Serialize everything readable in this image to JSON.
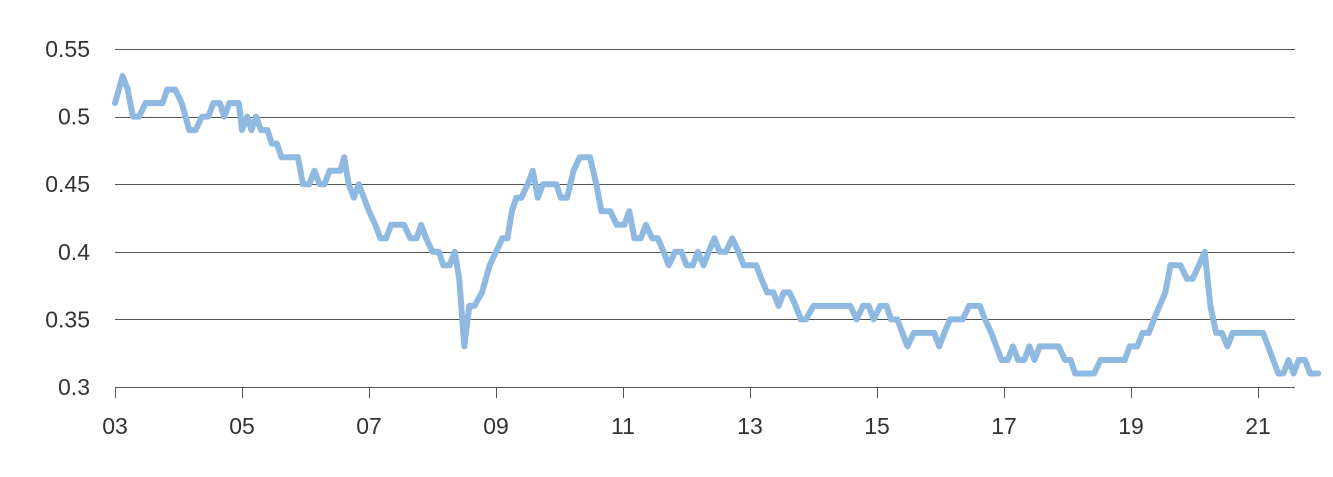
{
  "chart_data": {
    "type": "line",
    "title": "",
    "xlabel": "",
    "ylabel": "",
    "x_tick_labels": [
      "03",
      "05",
      "07",
      "09",
      "11",
      "13",
      "15",
      "17",
      "19",
      "21"
    ],
    "x_tick_values": [
      2003,
      2005,
      2007,
      2009,
      2011,
      2013,
      2015,
      2017,
      2019,
      2021
    ],
    "xlim": [
      2003,
      2021.6
    ],
    "y_tick_labels": [
      "0.3",
      "0.35",
      "0.4",
      "0.45",
      "0.5",
      "0.55"
    ],
    "y_tick_values": [
      0.3,
      0.35,
      0.4,
      0.45,
      0.5,
      0.55
    ],
    "ylim": [
      0.3,
      0.55
    ],
    "grid": true,
    "legend": "none",
    "line_color": "#8fb9e0",
    "axis_color": "#555555",
    "series": [
      {
        "points": [
          [
            2003.0,
            0.51
          ],
          [
            2003.12,
            0.53
          ],
          [
            2003.2,
            0.52
          ],
          [
            2003.28,
            0.5
          ],
          [
            2003.38,
            0.5
          ],
          [
            2003.48,
            0.51
          ],
          [
            2003.62,
            0.51
          ],
          [
            2003.75,
            0.51
          ],
          [
            2003.82,
            0.52
          ],
          [
            2003.95,
            0.52
          ],
          [
            2004.05,
            0.51
          ],
          [
            2004.17,
            0.49
          ],
          [
            2004.27,
            0.49
          ],
          [
            2004.37,
            0.5
          ],
          [
            2004.47,
            0.5
          ],
          [
            2004.55,
            0.51
          ],
          [
            2004.65,
            0.51
          ],
          [
            2004.72,
            0.5
          ],
          [
            2004.8,
            0.51
          ],
          [
            2004.95,
            0.51
          ],
          [
            2005.0,
            0.49
          ],
          [
            2005.08,
            0.5
          ],
          [
            2005.15,
            0.49
          ],
          [
            2005.22,
            0.5
          ],
          [
            2005.3,
            0.49
          ],
          [
            2005.4,
            0.49
          ],
          [
            2005.47,
            0.48
          ],
          [
            2005.55,
            0.48
          ],
          [
            2005.62,
            0.47
          ],
          [
            2005.72,
            0.47
          ],
          [
            2005.88,
            0.47
          ],
          [
            2005.96,
            0.45
          ],
          [
            2006.06,
            0.45
          ],
          [
            2006.14,
            0.46
          ],
          [
            2006.22,
            0.45
          ],
          [
            2006.3,
            0.45
          ],
          [
            2006.38,
            0.46
          ],
          [
            2006.55,
            0.46
          ],
          [
            2006.61,
            0.47
          ],
          [
            2006.68,
            0.45
          ],
          [
            2006.76,
            0.44
          ],
          [
            2006.84,
            0.45
          ],
          [
            2006.92,
            0.44
          ],
          [
            2007.0,
            0.43
          ],
          [
            2007.1,
            0.42
          ],
          [
            2007.18,
            0.41
          ],
          [
            2007.27,
            0.41
          ],
          [
            2007.35,
            0.42
          ],
          [
            2007.55,
            0.42
          ],
          [
            2007.65,
            0.41
          ],
          [
            2007.75,
            0.41
          ],
          [
            2007.82,
            0.42
          ],
          [
            2007.9,
            0.41
          ],
          [
            2008.0,
            0.4
          ],
          [
            2008.1,
            0.4
          ],
          [
            2008.17,
            0.39
          ],
          [
            2008.27,
            0.39
          ],
          [
            2008.35,
            0.4
          ],
          [
            2008.42,
            0.38
          ],
          [
            2008.5,
            0.33
          ],
          [
            2008.58,
            0.36
          ],
          [
            2008.66,
            0.36
          ],
          [
            2008.78,
            0.37
          ],
          [
            2008.9,
            0.39
          ],
          [
            2009.0,
            0.4
          ],
          [
            2009.1,
            0.41
          ],
          [
            2009.18,
            0.41
          ],
          [
            2009.25,
            0.43
          ],
          [
            2009.32,
            0.44
          ],
          [
            2009.4,
            0.44
          ],
          [
            2009.5,
            0.45
          ],
          [
            2009.58,
            0.46
          ],
          [
            2009.66,
            0.44
          ],
          [
            2009.74,
            0.45
          ],
          [
            2009.95,
            0.45
          ],
          [
            2010.02,
            0.44
          ],
          [
            2010.12,
            0.44
          ],
          [
            2010.22,
            0.46
          ],
          [
            2010.32,
            0.47
          ],
          [
            2010.48,
            0.47
          ],
          [
            2010.58,
            0.45
          ],
          [
            2010.66,
            0.43
          ],
          [
            2010.8,
            0.43
          ],
          [
            2010.9,
            0.42
          ],
          [
            2011.02,
            0.42
          ],
          [
            2011.1,
            0.43
          ],
          [
            2011.18,
            0.41
          ],
          [
            2011.28,
            0.41
          ],
          [
            2011.36,
            0.42
          ],
          [
            2011.46,
            0.41
          ],
          [
            2011.55,
            0.41
          ],
          [
            2011.64,
            0.4
          ],
          [
            2011.72,
            0.39
          ],
          [
            2011.82,
            0.4
          ],
          [
            2011.92,
            0.4
          ],
          [
            2012.0,
            0.39
          ],
          [
            2012.1,
            0.39
          ],
          [
            2012.18,
            0.4
          ],
          [
            2012.27,
            0.39
          ],
          [
            2012.35,
            0.4
          ],
          [
            2012.44,
            0.41
          ],
          [
            2012.52,
            0.4
          ],
          [
            2012.62,
            0.4
          ],
          [
            2012.72,
            0.41
          ],
          [
            2012.82,
            0.4
          ],
          [
            2012.9,
            0.39
          ],
          [
            2013.1,
            0.39
          ],
          [
            2013.18,
            0.38
          ],
          [
            2013.27,
            0.37
          ],
          [
            2013.37,
            0.37
          ],
          [
            2013.45,
            0.36
          ],
          [
            2013.53,
            0.37
          ],
          [
            2013.62,
            0.37
          ],
          [
            2013.72,
            0.36
          ],
          [
            2013.8,
            0.35
          ],
          [
            2013.88,
            0.35
          ],
          [
            2014.0,
            0.36
          ],
          [
            2014.58,
            0.36
          ],
          [
            2014.68,
            0.35
          ],
          [
            2014.78,
            0.36
          ],
          [
            2014.87,
            0.36
          ],
          [
            2014.95,
            0.35
          ],
          [
            2015.05,
            0.36
          ],
          [
            2015.15,
            0.36
          ],
          [
            2015.22,
            0.35
          ],
          [
            2015.32,
            0.35
          ],
          [
            2015.4,
            0.34
          ],
          [
            2015.48,
            0.33
          ],
          [
            2015.58,
            0.34
          ],
          [
            2015.9,
            0.34
          ],
          [
            2015.98,
            0.33
          ],
          [
            2016.06,
            0.34
          ],
          [
            2016.15,
            0.35
          ],
          [
            2016.35,
            0.35
          ],
          [
            2016.45,
            0.36
          ],
          [
            2016.62,
            0.36
          ],
          [
            2016.7,
            0.35
          ],
          [
            2016.8,
            0.34
          ],
          [
            2016.88,
            0.33
          ],
          [
            2016.96,
            0.32
          ],
          [
            2017.06,
            0.32
          ],
          [
            2017.14,
            0.33
          ],
          [
            2017.22,
            0.32
          ],
          [
            2017.32,
            0.32
          ],
          [
            2017.4,
            0.33
          ],
          [
            2017.48,
            0.32
          ],
          [
            2017.56,
            0.33
          ],
          [
            2017.86,
            0.33
          ],
          [
            2017.96,
            0.32
          ],
          [
            2018.05,
            0.32
          ],
          [
            2018.12,
            0.31
          ],
          [
            2018.42,
            0.31
          ],
          [
            2018.52,
            0.32
          ],
          [
            2018.9,
            0.32
          ],
          [
            2018.98,
            0.33
          ],
          [
            2019.1,
            0.33
          ],
          [
            2019.18,
            0.34
          ],
          [
            2019.28,
            0.34
          ],
          [
            2019.36,
            0.35
          ],
          [
            2019.45,
            0.36
          ],
          [
            2019.54,
            0.37
          ],
          [
            2019.62,
            0.39
          ],
          [
            2019.78,
            0.39
          ],
          [
            2019.88,
            0.38
          ],
          [
            2019.97,
            0.38
          ],
          [
            2020.07,
            0.39
          ],
          [
            2020.16,
            0.4
          ],
          [
            2020.25,
            0.36
          ],
          [
            2020.34,
            0.34
          ],
          [
            2020.43,
            0.34
          ],
          [
            2020.52,
            0.33
          ],
          [
            2020.6,
            0.34
          ],
          [
            2021.08,
            0.34
          ],
          [
            2021.16,
            0.33
          ],
          [
            2021.24,
            0.32
          ],
          [
            2021.32,
            0.31
          ],
          [
            2021.4,
            0.31
          ],
          [
            2021.48,
            0.32
          ],
          [
            2021.56,
            0.31
          ],
          [
            2021.64,
            0.32
          ],
          [
            2021.74,
            0.32
          ],
          [
            2021.82,
            0.31
          ],
          [
            2021.95,
            0.31
          ]
        ]
      }
    ]
  }
}
